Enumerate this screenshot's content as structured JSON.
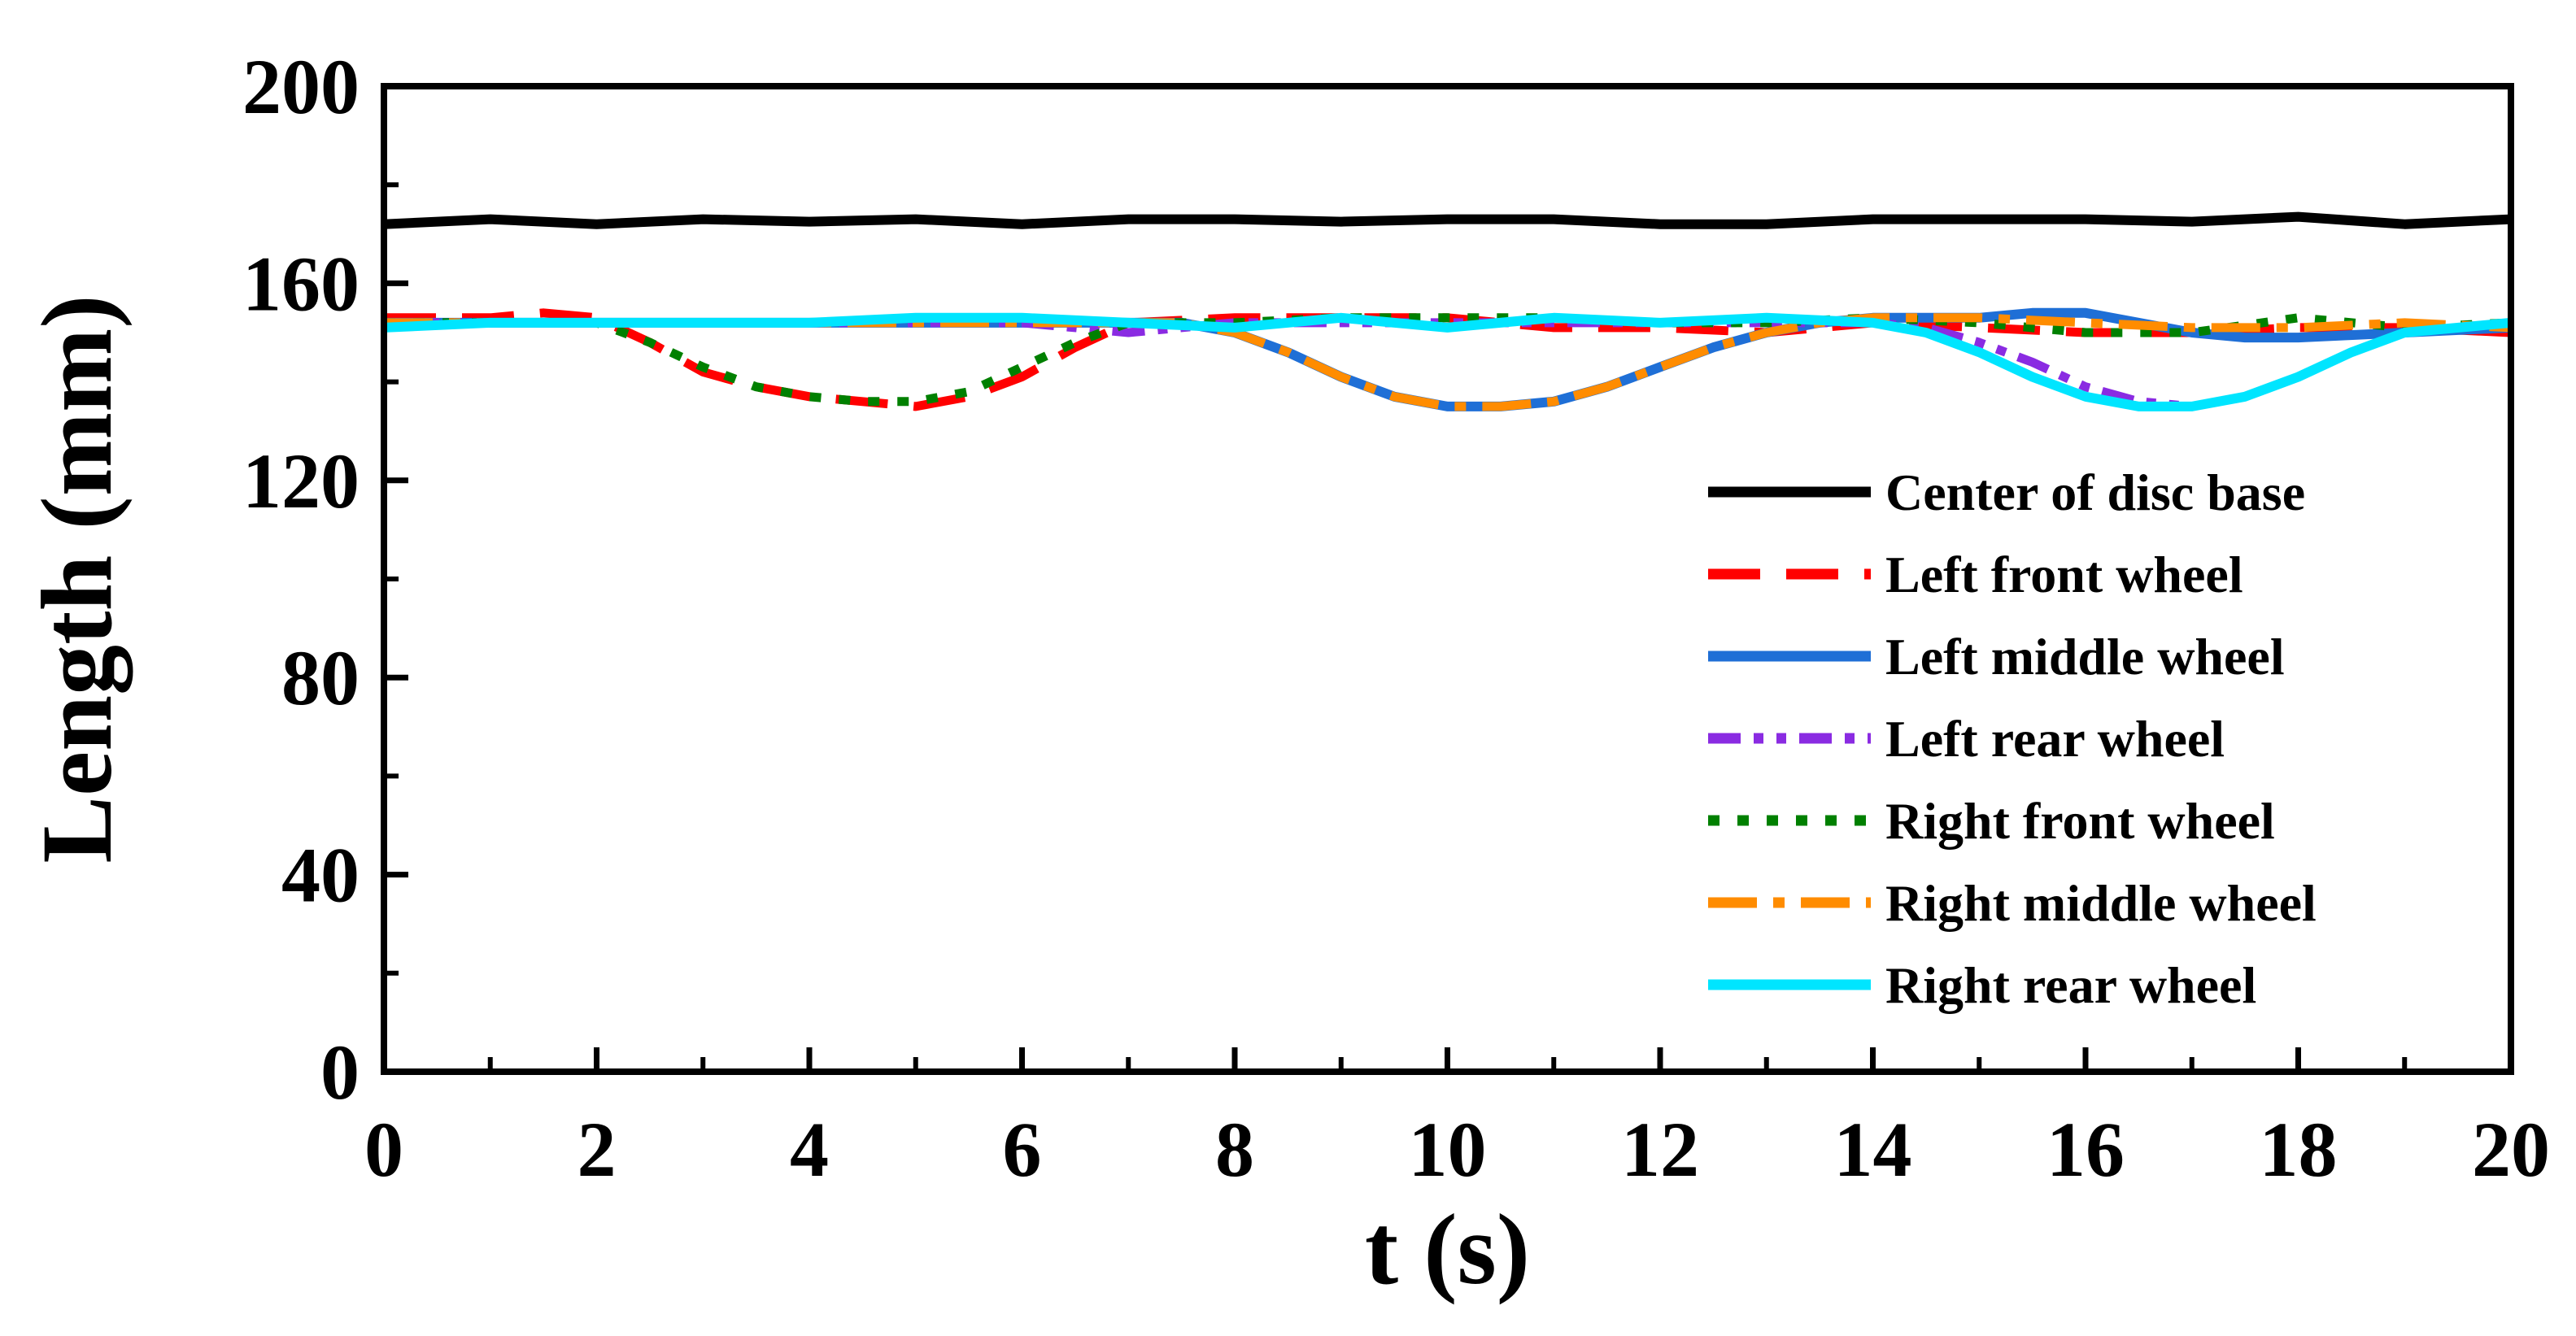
{
  "chart_data": {
    "type": "line",
    "xlabel": "t (s)",
    "ylabel": "Length (mm)",
    "xlim": [
      0,
      20
    ],
    "ylim": [
      0,
      200
    ],
    "xticks": [
      0,
      2,
      4,
      6,
      8,
      10,
      12,
      14,
      16,
      18,
      20
    ],
    "yticks": [
      0,
      40,
      80,
      120,
      160,
      200
    ],
    "grid": false,
    "legend_position": "lower-right",
    "series": [
      {
        "name": "Center of disc base",
        "color": "#000000",
        "dash": "solid",
        "x": [
          0,
          1,
          2,
          3,
          4,
          5,
          6,
          7,
          8,
          9,
          10,
          11,
          12,
          13,
          14,
          15,
          16,
          17,
          18,
          19,
          20
        ],
        "y": [
          172,
          173,
          172,
          173,
          172.5,
          173,
          172,
          173,
          173,
          172.5,
          173,
          173,
          172,
          172,
          173,
          173,
          173,
          172.5,
          173.5,
          172,
          173
        ]
      },
      {
        "name": "Left front wheel",
        "color": "#ff0000",
        "dash": "dash",
        "x": [
          0,
          1,
          1.5,
          2,
          2.5,
          3,
          3.5,
          4,
          4.5,
          5,
          5.5,
          6,
          6.5,
          7,
          8,
          9,
          10,
          11,
          12,
          13,
          14,
          15,
          16,
          17,
          18,
          19,
          20
        ],
        "y": [
          153,
          153,
          154,
          153,
          148,
          142,
          139,
          137,
          136,
          135,
          137,
          141,
          147,
          152,
          153,
          153,
          153,
          151,
          151,
          150,
          152,
          151,
          150,
          150,
          151,
          151,
          150
        ]
      },
      {
        "name": "Left middle wheel",
        "color": "#1f6fd6",
        "dash": "solid",
        "x": [
          0,
          1,
          2,
          3,
          4,
          5,
          6,
          7,
          7.5,
          8,
          8.5,
          9,
          9.5,
          10,
          10.5,
          11,
          11.5,
          12,
          12.5,
          13,
          13.5,
          14,
          15,
          15.5,
          16,
          16.5,
          17,
          17.5,
          18,
          19,
          20
        ],
        "y": [
          152,
          152,
          152,
          152,
          152,
          152,
          152,
          152,
          152,
          150,
          146,
          141,
          137,
          135,
          135,
          136,
          139,
          143,
          147,
          150,
          152,
          153,
          153,
          154,
          154,
          152,
          150,
          149,
          149,
          150,
          151
        ]
      },
      {
        "name": "Left rear wheel",
        "color": "#8a2be2",
        "dash": "dashdotdot",
        "x": [
          0,
          1,
          2,
          3,
          4,
          5,
          6,
          6.5,
          7,
          7.5,
          8,
          9,
          10,
          11,
          12,
          13,
          13.5,
          14,
          14.5,
          15,
          15.5,
          16,
          16.5,
          17,
          17.5,
          18,
          18.5,
          19,
          20
        ],
        "y": [
          152,
          152,
          152,
          152,
          152,
          152,
          152,
          151,
          150,
          151,
          152,
          152,
          152,
          152,
          152,
          152,
          152,
          152,
          151,
          148,
          144,
          139,
          136,
          135,
          137,
          141,
          146,
          150,
          152
        ]
      },
      {
        "name": "Right front wheel",
        "color": "#008000",
        "dash": "dot",
        "x": [
          0,
          1,
          2,
          2.5,
          3,
          3.5,
          4,
          4.5,
          5,
          5.5,
          6,
          6.5,
          7,
          8,
          9,
          10,
          11,
          12,
          13,
          14,
          15,
          16,
          17,
          18,
          19,
          20
        ],
        "y": [
          152,
          152,
          152,
          148,
          143,
          139,
          137,
          136,
          136,
          138,
          143,
          148,
          152,
          152,
          153,
          153,
          153,
          152,
          152,
          153,
          152,
          150,
          150,
          153,
          151,
          152
        ]
      },
      {
        "name": "Right middle wheel",
        "color": "#ff8c00",
        "dash": "dashdot",
        "x": [
          0,
          1,
          2,
          3,
          4,
          5,
          6,
          7,
          7.5,
          8,
          8.5,
          9,
          9.5,
          10,
          10.5,
          11,
          11.5,
          12,
          12.5,
          13,
          13.5,
          14,
          15,
          16,
          17,
          18,
          19,
          20
        ],
        "y": [
          152,
          152,
          152,
          152,
          152,
          152,
          152,
          152,
          152,
          150,
          146,
          141,
          137,
          135,
          135,
          136,
          139,
          143,
          147,
          150,
          152,
          153,
          153,
          152,
          151,
          151,
          152,
          151
        ]
      },
      {
        "name": "Right rear wheel",
        "color": "#00e5ff",
        "dash": "solid",
        "x": [
          0,
          1,
          2,
          3,
          4,
          5,
          6,
          7,
          8,
          9,
          10,
          11,
          12,
          13,
          14,
          14.5,
          15,
          15.5,
          16,
          16.5,
          17,
          17.5,
          18,
          18.5,
          19,
          20
        ],
        "y": [
          151,
          152,
          152,
          152,
          152,
          153,
          153,
          152,
          151,
          153,
          151,
          153,
          152,
          153,
          152,
          150,
          146,
          141,
          137,
          135,
          135,
          137,
          141,
          146,
          150,
          152
        ]
      }
    ]
  }
}
